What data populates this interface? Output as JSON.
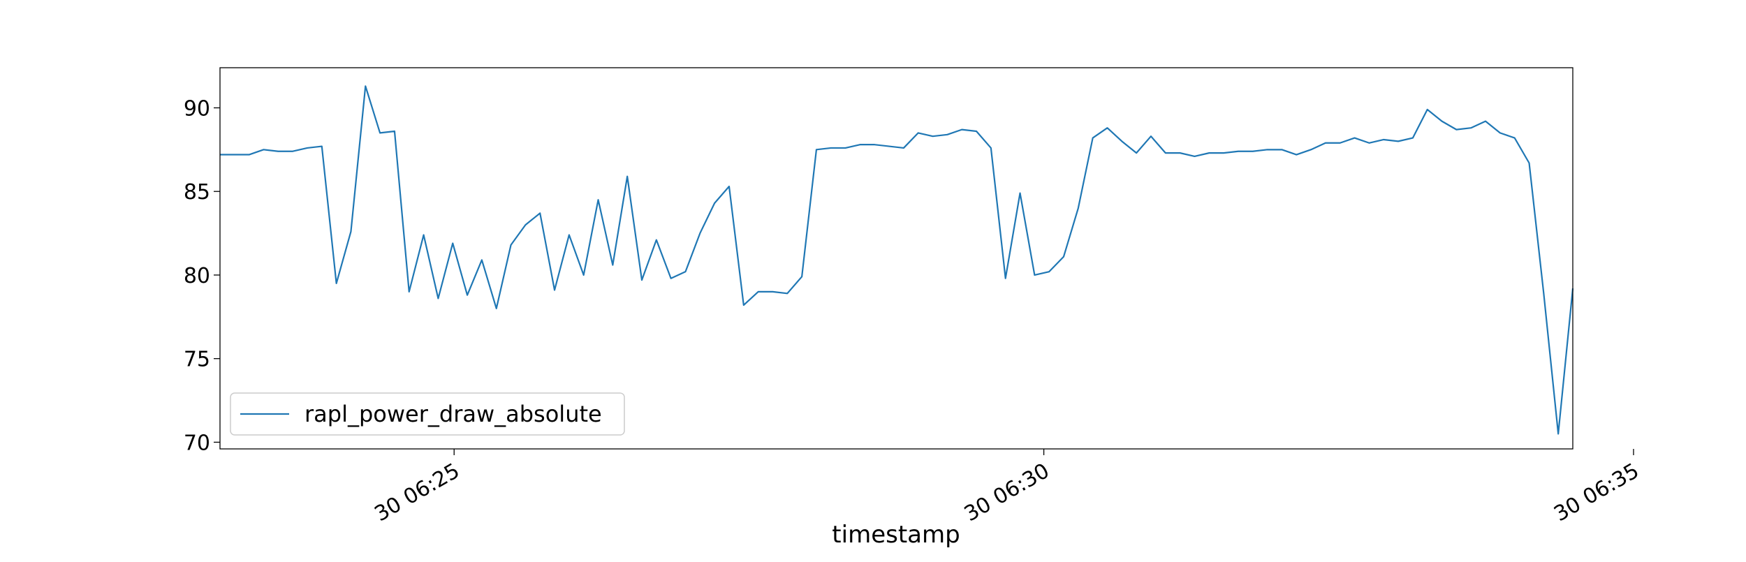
{
  "chart_data": {
    "type": "line",
    "title": "",
    "xlabel": "timestamp",
    "ylabel": "",
    "xlim_minutes": [
      -3.97,
      18.97
    ],
    "ylim": [
      69.6,
      92.4
    ],
    "x_ticks": [
      {
        "minute": 0,
        "label": "30 06:25"
      },
      {
        "minute": 10,
        "label": "30 06:30"
      },
      {
        "minute": 20,
        "label": "30 06:35"
      }
    ],
    "y_ticks": [
      {
        "value": 70,
        "label": "70"
      },
      {
        "value": 75,
        "label": "75"
      },
      {
        "value": 80,
        "label": "80"
      },
      {
        "value": 85,
        "label": "85"
      },
      {
        "value": 90,
        "label": "90"
      }
    ],
    "grid": false,
    "legend_position": "lower-left",
    "series": [
      {
        "name": "rapl_power_draw_absolute",
        "color": "#1f77b4",
        "values": [
          87.2,
          87.2,
          87.2,
          87.5,
          87.4,
          87.4,
          87.6,
          87.7,
          79.5,
          82.6,
          91.3,
          88.5,
          88.6,
          79.0,
          82.4,
          78.6,
          81.9,
          78.8,
          80.9,
          78.0,
          81.8,
          83.0,
          83.7,
          79.1,
          82.4,
          80.0,
          84.5,
          80.6,
          85.9,
          79.7,
          82.1,
          79.8,
          80.2,
          82.5,
          84.3,
          85.3,
          78.2,
          79.0,
          79.0,
          78.9,
          79.9,
          87.5,
          87.6,
          87.6,
          87.8,
          87.8,
          87.7,
          87.6,
          88.5,
          88.3,
          88.4,
          88.7,
          88.6,
          87.6,
          79.8,
          84.9,
          80.0,
          80.2,
          81.1,
          84.0,
          88.2,
          88.8,
          88.0,
          87.3,
          88.3,
          87.3,
          87.3,
          87.1,
          87.3,
          87.3,
          87.4,
          87.4,
          87.5,
          87.5,
          87.2,
          87.5,
          87.9,
          87.9,
          88.2,
          87.9,
          88.1,
          88.0,
          88.2,
          89.9,
          89.2,
          88.7,
          88.8,
          89.2,
          88.5,
          88.2,
          86.7,
          78.9,
          70.5,
          79.2
        ]
      }
    ]
  }
}
